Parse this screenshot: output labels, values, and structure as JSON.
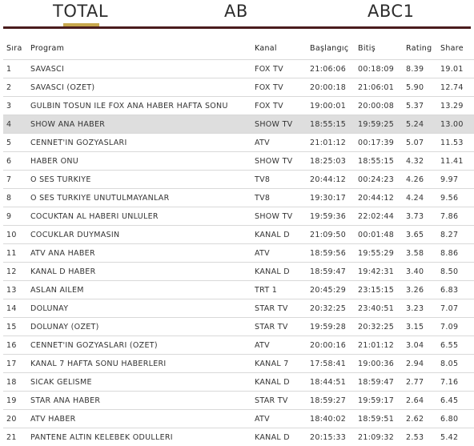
{
  "tabs": [
    {
      "label": "TOTAL",
      "active": true
    },
    {
      "label": "AB",
      "active": false
    },
    {
      "label": "ABC1",
      "active": false
    }
  ],
  "colors": {
    "accent": "#c8a74c",
    "rule": "#4a1c1d",
    "highlight_row": "#dedede"
  },
  "table": {
    "headers": [
      "Sıra",
      "Program",
      "Kanal",
      "Başlangıç",
      "Bitiş",
      "Rating",
      "Share"
    ],
    "highlight_row_index": 3,
    "rows": [
      [
        "1",
        "SAVASCI",
        "FOX TV",
        "21:06:06",
        "00:18:09",
        "8.39",
        "19.01"
      ],
      [
        "2",
        "SAVASCI (OZET)",
        "FOX TV",
        "20:00:18",
        "21:06:01",
        "5.90",
        "12.74"
      ],
      [
        "3",
        "GULBIN TOSUN ILE FOX ANA HABER HAFTA SONU",
        "FOX TV",
        "19:00:01",
        "20:00:08",
        "5.37",
        "13.29"
      ],
      [
        "4",
        "SHOW ANA HABER",
        "SHOW TV",
        "18:55:15",
        "19:59:25",
        "5.24",
        "13.00"
      ],
      [
        "5",
        "CENNET'IN GOZYASLARI",
        "ATV",
        "21:01:12",
        "00:17:39",
        "5.07",
        "11.53"
      ],
      [
        "6",
        "HABER ONU",
        "SHOW TV",
        "18:25:03",
        "18:55:15",
        "4.32",
        "11.41"
      ],
      [
        "7",
        "O SES TURKIYE",
        "TV8",
        "20:44:12",
        "00:24:23",
        "4.26",
        "9.97"
      ],
      [
        "8",
        "O SES TURKIYE UNUTULMAYANLAR",
        "TV8",
        "19:30:17",
        "20:44:12",
        "4.24",
        "9.56"
      ],
      [
        "9",
        "COCUKTAN AL HABERI UNLULER",
        "SHOW TV",
        "19:59:36",
        "22:02:44",
        "3.73",
        "7.86"
      ],
      [
        "10",
        "COCUKLAR DUYMASIN",
        "KANAL D",
        "21:09:50",
        "00:01:48",
        "3.65",
        "8.27"
      ],
      [
        "11",
        "ATV ANA HABER",
        "ATV",
        "18:59:56",
        "19:55:29",
        "3.58",
        "8.86"
      ],
      [
        "12",
        "KANAL D HABER",
        "KANAL D",
        "18:59:47",
        "19:42:31",
        "3.40",
        "8.50"
      ],
      [
        "13",
        "ASLAN AILEM",
        "TRT 1",
        "20:45:29",
        "23:15:15",
        "3.26",
        "6.83"
      ],
      [
        "14",
        "DOLUNAY",
        "STAR TV",
        "20:32:25",
        "23:40:51",
        "3.23",
        "7.07"
      ],
      [
        "15",
        "DOLUNAY (OZET)",
        "STAR TV",
        "19:59:28",
        "20:32:25",
        "3.15",
        "7.09"
      ],
      [
        "16",
        "CENNET'IN GOZYASLARI (OZET)",
        "ATV",
        "20:00:16",
        "21:01:12",
        "3.04",
        "6.55"
      ],
      [
        "17",
        "KANAL 7 HAFTA SONU HABERLERI",
        "KANAL 7",
        "17:58:41",
        "19:00:36",
        "2.94",
        "8.05"
      ],
      [
        "18",
        "SICAK GELISME",
        "KANAL D",
        "18:44:51",
        "18:59:47",
        "2.77",
        "7.16"
      ],
      [
        "19",
        "STAR ANA HABER",
        "STAR TV",
        "18:59:27",
        "19:59:17",
        "2.64",
        "6.45"
      ],
      [
        "20",
        "ATV HABER",
        "ATV",
        "18:40:02",
        "18:59:51",
        "2.62",
        "6.80"
      ],
      [
        "21",
        "PANTENE ALTIN KELEBEK ODULLERI",
        "KANAL D",
        "20:15:33",
        "21:09:32",
        "2.53",
        "5.42"
      ]
    ]
  }
}
